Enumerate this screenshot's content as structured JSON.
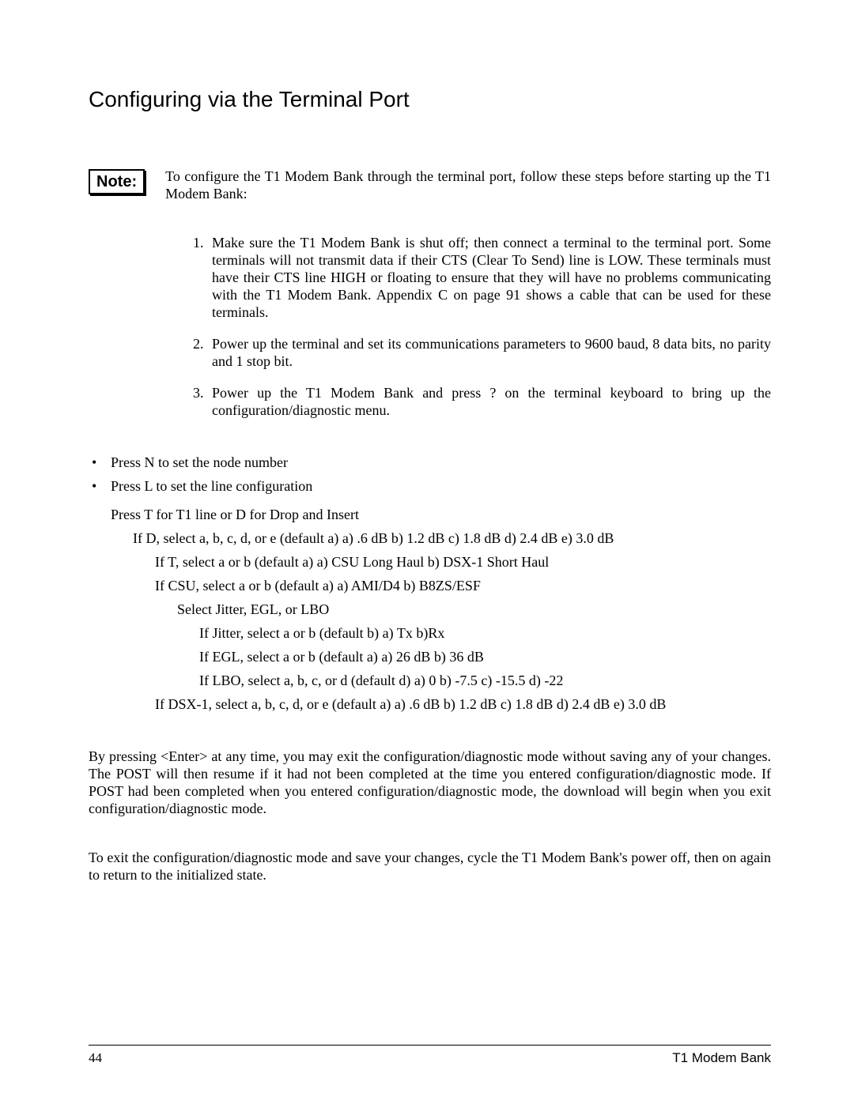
{
  "title": "Configuring via the Terminal Port",
  "note_label": "Note:",
  "note_text": "To configure the T1 Modem Bank through the terminal port, follow these steps before starting up the T1 Modem Bank:",
  "steps": [
    "Make sure the T1 Modem Bank is shut off; then connect a terminal to the terminal port. Some terminals will not transmit data if their CTS (Clear To Send) line is LOW. These terminals must have their CTS line HIGH or floating to ensure that they will have no problems communicating with the T1 Modem Bank. Appendix C on page 91 shows a cable that can be used for these terminals.",
    "Power up the terminal and set its communications parameters to 9600 baud, 8 data bits, no parity and 1 stop bit.",
    "Power up the T1 Modem Bank and press ? on the terminal keyboard to bring up the configuration/diagnostic menu."
  ],
  "bullets": [
    "Press N to set the node number",
    "Press L to set the line configuration"
  ],
  "tree": {
    "l0": "Press T for T1 line or D for Drop and Insert",
    "l1": "If D, select a, b, c, d, or e  (default a)          a) .6 dB        b) 1.2 dB      c) 1.8 dB       d) 2.4 dB    e) 3.0 dB",
    "l2": "If T, select a or b  (default a)     a) CSU Long Haul           b) DSX-1 Short Haul",
    "l3": "If CSU, select a or b (default a)      a) AMI/D4           b) B8ZS/ESF",
    "l4": "Select Jitter, EGL, or LBO",
    "l5": "If Jitter, select a or b  (default b)         a) Tx              b)Rx",
    "l6": "If EGL, select a or b  (default a)         a) 26 dB        b) 36 dB",
    "l7": "If LBO, select a, b, c, or d  (default d)    a) 0    b) -7.5      c) -15.5      d) -22",
    "l8": "If DSX-1, select a, b, c, d, or e  (default a)    a) .6 dB     b) 1.2 dB     c) 1.8 dB      d) 2.4 dB   e) 3.0 dB"
  },
  "para1": "By pressing <Enter> at any time, you may exit the configuration/diagnostic mode without saving any of your changes. The POST will then resume if it had not been completed at the time you entered configuration/diagnostic mode. If POST had been completed when you entered configuration/diagnostic mode, the download will begin when you exit configuration/diagnostic mode.",
  "para2": "To exit the configuration/diagnostic mode and save your changes, cycle the T1 Modem Bank's power off, then on again to return to the initialized state.",
  "footer": {
    "page": "44",
    "label": "T1 Modem Bank"
  }
}
